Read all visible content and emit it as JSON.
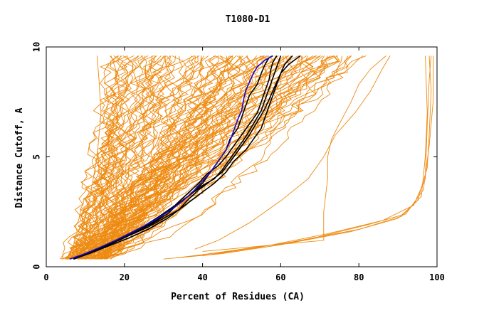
{
  "chart_data": {
    "type": "line",
    "title": "T1080-D1",
    "xlabel": "Percent of Residues (CA)",
    "ylabel": "Distance Cutoff, A",
    "xlim": [
      0,
      100
    ],
    "ylim": [
      0,
      10
    ],
    "xticks": [
      "0",
      "20",
      "40",
      "60",
      "80",
      "100"
    ],
    "yticks": [
      "0",
      "5",
      "10"
    ],
    "grid": false,
    "legend": "none",
    "colors": {
      "models": "#ee8a10",
      "highlight": "#000000",
      "best": "#1a0ac8",
      "axis": "#000000"
    },
    "series": [
      {
        "group": "highlight",
        "x": [
          7,
          10,
          14,
          19,
          24,
          28,
          31,
          34,
          37,
          40,
          42,
          44,
          46,
          47,
          49,
          50,
          51,
          52,
          54,
          55,
          56,
          57,
          58
        ],
        "y": [
          0.35,
          0.6,
          0.9,
          1.3,
          1.7,
          2.1,
          2.5,
          2.9,
          3.3,
          3.8,
          4.3,
          4.8,
          5.3,
          5.8,
          6.3,
          6.8,
          7.3,
          7.8,
          8.3,
          8.8,
          9.2,
          9.5,
          9.6
        ]
      },
      {
        "group": "highlight",
        "x": [
          7,
          10,
          15,
          20,
          25,
          29,
          33,
          36,
          39,
          41,
          44,
          46,
          48,
          50,
          52,
          54,
          55,
          56,
          57,
          57.5,
          58,
          59
        ],
        "y": [
          0.35,
          0.6,
          0.95,
          1.4,
          1.85,
          2.3,
          2.8,
          3.3,
          3.8,
          4.2,
          4.6,
          5.0,
          5.5,
          6.0,
          6.5,
          7.0,
          7.5,
          8.0,
          8.5,
          9.0,
          9.3,
          9.6
        ]
      },
      {
        "group": "highlight",
        "x": [
          7,
          11,
          16,
          21,
          26,
          30,
          34,
          37,
          40,
          43,
          46,
          48,
          51,
          53,
          55,
          56,
          57,
          58,
          59,
          60,
          61,
          63
        ],
        "y": [
          0.35,
          0.65,
          1.0,
          1.4,
          1.8,
          2.2,
          2.6,
          3.0,
          3.4,
          3.8,
          4.3,
          4.8,
          5.3,
          5.8,
          6.3,
          6.8,
          7.3,
          7.8,
          8.3,
          8.8,
          9.2,
          9.6
        ]
      },
      {
        "group": "highlight",
        "x": [
          7,
          11,
          16,
          21,
          26,
          31,
          34,
          36,
          39,
          42,
          45,
          48,
          50,
          52,
          54,
          56,
          57,
          58,
          59,
          60,
          62,
          65
        ],
        "y": [
          0.35,
          0.6,
          0.95,
          1.3,
          1.7,
          2.2,
          2.6,
          3.0,
          3.5,
          3.9,
          4.3,
          5.0,
          5.5,
          6.0,
          6.6,
          7.2,
          7.6,
          8.0,
          8.4,
          8.8,
          9.2,
          9.6
        ]
      },
      {
        "group": "highlight",
        "x": [
          7,
          11,
          16,
          22,
          27,
          31,
          34,
          37,
          40,
          43,
          45,
          47,
          49,
          51,
          53,
          55,
          56,
          57,
          58,
          59,
          60
        ],
        "y": [
          0.35,
          0.65,
          1.0,
          1.5,
          1.95,
          2.4,
          2.9,
          3.3,
          3.7,
          4.0,
          4.4,
          4.9,
          5.4,
          5.9,
          6.5,
          7.1,
          7.6,
          8.1,
          8.6,
          9.1,
          9.6
        ]
      },
      {
        "group": "best",
        "x": [
          6,
          10,
          14,
          19,
          24,
          28,
          32,
          35,
          38,
          40,
          42,
          44,
          46,
          47,
          48,
          49,
          50,
          50.5,
          51,
          52,
          53,
          54,
          56,
          58
        ],
        "y": [
          0.35,
          0.6,
          0.9,
          1.3,
          1.75,
          2.15,
          2.6,
          3.0,
          3.5,
          3.9,
          4.3,
          4.8,
          5.3,
          5.7,
          6.2,
          6.7,
          7.1,
          7.6,
          8.0,
          8.4,
          8.8,
          9.1,
          9.4,
          9.6
        ]
      }
    ]
  }
}
